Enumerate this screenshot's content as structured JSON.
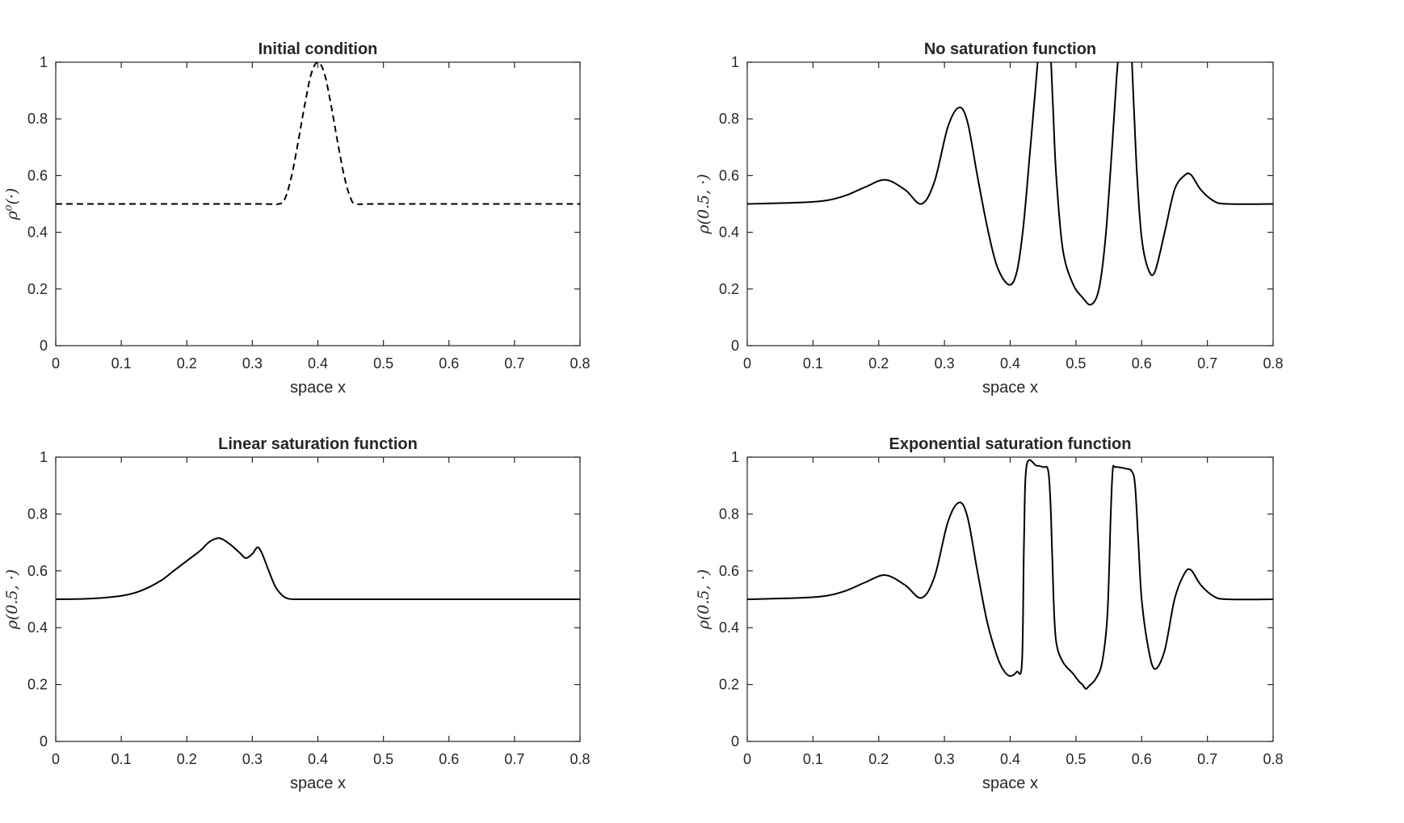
{
  "figure": {
    "background": "#ffffff",
    "line_color": "#000000",
    "axis_color": "#262626"
  },
  "chart_data": [
    {
      "type": "line",
      "title": "Initial condition",
      "xlabel": "space x",
      "ylabel": "ρ⁰(·)",
      "xlim": [
        0,
        0.8
      ],
      "ylim": [
        0,
        1
      ],
      "xticks": [
        "0",
        "0.1",
        "0.2",
        "0.3",
        "0.4",
        "0.5",
        "0.6",
        "0.7",
        "0.8"
      ],
      "yticks": [
        "0",
        "0.2",
        "0.4",
        "0.6",
        "0.8",
        "1"
      ],
      "line_style": "dashed",
      "grid": false,
      "series": [
        {
          "x": [
            0,
            0.3,
            0.34,
            0.35,
            0.36,
            0.37,
            0.38,
            0.39,
            0.4,
            0.41,
            0.42,
            0.43,
            0.44,
            0.45,
            0.46,
            0.5,
            0.8
          ],
          "y": [
            0.5,
            0.5,
            0.5,
            0.52,
            0.6,
            0.72,
            0.85,
            0.96,
            1.0,
            0.96,
            0.85,
            0.72,
            0.6,
            0.52,
            0.5,
            0.5,
            0.5
          ]
        }
      ]
    },
    {
      "type": "line",
      "title": "No saturation function",
      "xlabel": "space x",
      "ylabel": "ρ(0.5, ·)",
      "xlim": [
        0,
        0.8
      ],
      "ylim": [
        0,
        1
      ],
      "xticks": [
        "0",
        "0.1",
        "0.2",
        "0.3",
        "0.4",
        "0.5",
        "0.6",
        "0.7",
        "0.8"
      ],
      "yticks": [
        "0",
        "0.2",
        "0.4",
        "0.6",
        "0.8",
        "1"
      ],
      "line_style": "solid",
      "grid": false,
      "series": [
        {
          "x": [
            0,
            0.08,
            0.12,
            0.15,
            0.18,
            0.21,
            0.24,
            0.265,
            0.285,
            0.305,
            0.322,
            0.335,
            0.35,
            0.365,
            0.38,
            0.398,
            0.41,
            0.42,
            0.43,
            0.44,
            0.445,
            0.45,
            0.455,
            0.46,
            0.465,
            0.47,
            0.48,
            0.495,
            0.51,
            0.523,
            0.535,
            0.545,
            0.555,
            0.562,
            0.568,
            0.573,
            0.578,
            0.583,
            0.588,
            0.593,
            0.6,
            0.61,
            0.62,
            0.635,
            0.65,
            0.665,
            0.675,
            0.69,
            0.71,
            0.73,
            0.8
          ],
          "y": [
            0.5,
            0.505,
            0.512,
            0.53,
            0.56,
            0.585,
            0.55,
            0.5,
            0.58,
            0.77,
            0.84,
            0.79,
            0.6,
            0.42,
            0.28,
            0.215,
            0.26,
            0.42,
            0.68,
            0.95,
            1.1,
            1.2,
            1.2,
            1.1,
            0.85,
            0.6,
            0.34,
            0.22,
            0.17,
            0.145,
            0.2,
            0.38,
            0.7,
            0.95,
            1.1,
            1.2,
            1.2,
            1.1,
            0.85,
            0.6,
            0.38,
            0.27,
            0.26,
            0.4,
            0.55,
            0.6,
            0.603,
            0.55,
            0.51,
            0.5,
            0.5
          ]
        }
      ]
    },
    {
      "type": "line",
      "title": "Linear saturation function",
      "xlabel": "space x",
      "ylabel": "ρ(0.5, ·)",
      "xlim": [
        0,
        0.8
      ],
      "ylim": [
        0,
        1
      ],
      "xticks": [
        "0",
        "0.1",
        "0.2",
        "0.3",
        "0.4",
        "0.5",
        "0.6",
        "0.7",
        "0.8"
      ],
      "yticks": [
        "0",
        "0.2",
        "0.4",
        "0.6",
        "0.8",
        "1"
      ],
      "line_style": "solid",
      "grid": false,
      "series": [
        {
          "x": [
            0,
            0.05,
            0.1,
            0.13,
            0.16,
            0.18,
            0.2,
            0.22,
            0.235,
            0.25,
            0.265,
            0.28,
            0.29,
            0.3,
            0.308,
            0.315,
            0.325,
            0.335,
            0.345,
            0.355,
            0.37,
            0.4,
            0.5,
            0.8
          ],
          "y": [
            0.5,
            0.502,
            0.512,
            0.53,
            0.565,
            0.6,
            0.635,
            0.67,
            0.703,
            0.715,
            0.695,
            0.665,
            0.645,
            0.66,
            0.683,
            0.66,
            0.6,
            0.545,
            0.515,
            0.502,
            0.5,
            0.5,
            0.5,
            0.5
          ]
        }
      ]
    },
    {
      "type": "line",
      "title": "Exponential saturation function",
      "xlabel": "space x",
      "ylabel": "ρ(0.5, ·)",
      "xlim": [
        0,
        0.8
      ],
      "ylim": [
        0,
        1
      ],
      "xticks": [
        "0",
        "0.1",
        "0.2",
        "0.3",
        "0.4",
        "0.5",
        "0.6",
        "0.7",
        "0.8"
      ],
      "yticks": [
        "0",
        "0.2",
        "0.4",
        "0.6",
        "0.8",
        "1"
      ],
      "line_style": "solid",
      "grid": false,
      "series": [
        {
          "x": [
            0,
            0.08,
            0.12,
            0.15,
            0.18,
            0.21,
            0.24,
            0.265,
            0.285,
            0.305,
            0.322,
            0.335,
            0.35,
            0.365,
            0.38,
            0.39,
            0.4,
            0.41,
            0.418,
            0.421,
            0.425,
            0.44,
            0.45,
            0.458,
            0.462,
            0.466,
            0.47,
            0.48,
            0.495,
            0.505,
            0.51,
            0.515,
            0.52,
            0.53,
            0.54,
            0.548,
            0.553,
            0.556,
            0.56,
            0.575,
            0.585,
            0.59,
            0.595,
            0.6,
            0.61,
            0.62,
            0.635,
            0.65,
            0.665,
            0.675,
            0.69,
            0.71,
            0.73,
            0.8
          ],
          "y": [
            0.5,
            0.505,
            0.512,
            0.53,
            0.56,
            0.585,
            0.55,
            0.505,
            0.58,
            0.77,
            0.84,
            0.79,
            0.6,
            0.42,
            0.3,
            0.25,
            0.23,
            0.245,
            0.28,
            0.7,
            0.97,
            0.97,
            0.965,
            0.95,
            0.8,
            0.5,
            0.35,
            0.28,
            0.24,
            0.21,
            0.2,
            0.185,
            0.195,
            0.22,
            0.28,
            0.45,
            0.8,
            0.955,
            0.965,
            0.96,
            0.95,
            0.9,
            0.7,
            0.5,
            0.33,
            0.255,
            0.32,
            0.5,
            0.59,
            0.603,
            0.55,
            0.51,
            0.5,
            0.5
          ]
        }
      ]
    }
  ]
}
